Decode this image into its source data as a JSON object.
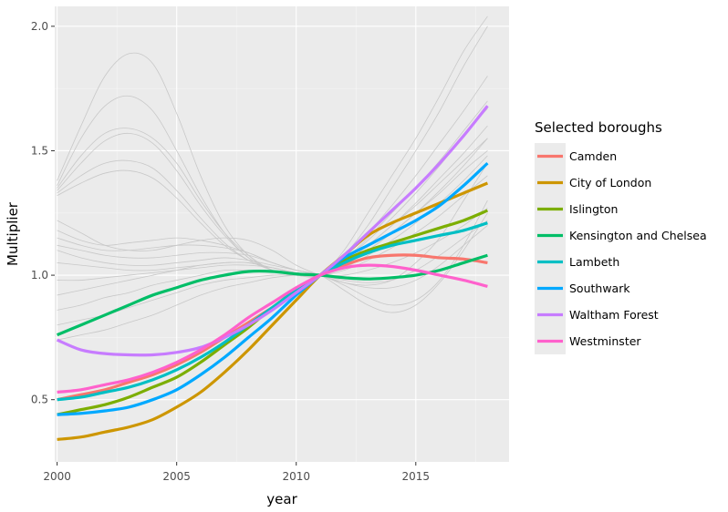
{
  "chart_data": {
    "type": "line",
    "title": "",
    "xlabel": "year",
    "ylabel": "Multiplier",
    "xlim": [
      1999.9,
      2018.9
    ],
    "ylim": [
      0.25,
      2.08
    ],
    "x_ticks": [
      2000,
      2005,
      2010,
      2015
    ],
    "y_ticks": [
      0.5,
      1.0,
      1.5,
      2.0
    ],
    "x_tick_labels": [
      "2000",
      "2005",
      "2010",
      "2015"
    ],
    "y_tick_labels": [
      "0.5",
      "1.0",
      "1.5",
      "2.0"
    ],
    "grid": true,
    "legend_title": "Selected boroughs",
    "legend_position": "right",
    "background_color": "#EBEBEB",
    "background_series_color": "#C8C8C8",
    "x": [
      2000,
      2001,
      2002,
      2003,
      2004,
      2005,
      2006,
      2007,
      2008,
      2009,
      2010,
      2011,
      2012,
      2013,
      2014,
      2015,
      2016,
      2017,
      2018
    ],
    "series": [
      {
        "name": "Camden",
        "color": "#F8766D",
        "values": [
          0.5,
          0.52,
          0.54,
          0.57,
          0.6,
          0.64,
          0.69,
          0.75,
          0.81,
          0.87,
          0.93,
          1.0,
          1.04,
          1.07,
          1.08,
          1.08,
          1.07,
          1.065,
          1.05
        ]
      },
      {
        "name": "City of London",
        "color": "#CD9600",
        "values": [
          0.34,
          0.35,
          0.37,
          0.39,
          0.42,
          0.47,
          0.53,
          0.61,
          0.7,
          0.8,
          0.9,
          1.0,
          1.08,
          1.16,
          1.21,
          1.25,
          1.29,
          1.33,
          1.37
        ]
      },
      {
        "name": "Islington",
        "color": "#7CAE00",
        "values": [
          0.44,
          0.46,
          0.48,
          0.51,
          0.55,
          0.59,
          0.65,
          0.72,
          0.79,
          0.87,
          0.94,
          1.0,
          1.06,
          1.1,
          1.13,
          1.16,
          1.19,
          1.22,
          1.26
        ]
      },
      {
        "name": "Kensington and Chelsea",
        "color": "#00BE67",
        "values": [
          0.76,
          0.8,
          0.84,
          0.88,
          0.92,
          0.95,
          0.98,
          1.0,
          1.015,
          1.015,
          1.005,
          1.0,
          0.99,
          0.985,
          0.99,
          1.0,
          1.02,
          1.05,
          1.08
        ]
      },
      {
        "name": "Lambeth",
        "color": "#00BFC4",
        "values": [
          0.5,
          0.51,
          0.53,
          0.55,
          0.58,
          0.62,
          0.67,
          0.73,
          0.8,
          0.87,
          0.94,
          1.0,
          1.05,
          1.09,
          1.12,
          1.14,
          1.16,
          1.18,
          1.21
        ]
      },
      {
        "name": "Southwark",
        "color": "#00A9FF",
        "values": [
          0.44,
          0.445,
          0.455,
          0.47,
          0.5,
          0.54,
          0.6,
          0.67,
          0.75,
          0.83,
          0.92,
          1.0,
          1.07,
          1.12,
          1.17,
          1.22,
          1.28,
          1.36,
          1.45
        ]
      },
      {
        "name": "Waltham Forest",
        "color": "#C77CFF",
        "values": [
          0.74,
          0.7,
          0.685,
          0.68,
          0.68,
          0.69,
          0.71,
          0.75,
          0.8,
          0.86,
          0.93,
          1.0,
          1.08,
          1.17,
          1.26,
          1.35,
          1.45,
          1.56,
          1.68
        ]
      },
      {
        "name": "Westminster",
        "color": "#FF61CC",
        "values": [
          0.53,
          0.54,
          0.56,
          0.58,
          0.61,
          0.65,
          0.7,
          0.76,
          0.83,
          0.89,
          0.95,
          1.0,
          1.03,
          1.04,
          1.035,
          1.02,
          1.0,
          0.98,
          0.955
        ]
      }
    ],
    "other_boroughs": [
      [
        1.38,
        1.6,
        1.8,
        1.89,
        1.85,
        1.65,
        1.4,
        1.2,
        1.08,
        1.02,
        1.0,
        1.0,
        1.1,
        1.25,
        1.4,
        1.55,
        1.72,
        1.9,
        2.04
      ],
      [
        1.36,
        1.55,
        1.68,
        1.72,
        1.66,
        1.5,
        1.32,
        1.17,
        1.07,
        1.02,
        1.0,
        1.0,
        1.08,
        1.2,
        1.35,
        1.5,
        1.66,
        1.84,
        2.0
      ],
      [
        1.35,
        1.48,
        1.57,
        1.59,
        1.55,
        1.45,
        1.3,
        1.17,
        1.08,
        1.02,
        1.0,
        1.0,
        1.07,
        1.17,
        1.28,
        1.4,
        1.53,
        1.66,
        1.8
      ],
      [
        1.34,
        1.45,
        1.54,
        1.57,
        1.53,
        1.42,
        1.28,
        1.16,
        1.07,
        1.02,
        1.0,
        1.0,
        1.06,
        1.15,
        1.25,
        1.35,
        1.46,
        1.58,
        1.7
      ],
      [
        1.33,
        1.4,
        1.45,
        1.46,
        1.43,
        1.34,
        1.23,
        1.13,
        1.06,
        1.02,
        1.0,
        1.0,
        1.05,
        1.12,
        1.2,
        1.28,
        1.37,
        1.46,
        1.55
      ],
      [
        1.32,
        1.37,
        1.41,
        1.42,
        1.39,
        1.31,
        1.21,
        1.12,
        1.06,
        1.02,
        1.0,
        1.0,
        1.04,
        1.1,
        1.17,
        1.25,
        1.33,
        1.42,
        1.5
      ],
      [
        1.22,
        1.17,
        1.12,
        1.1,
        1.1,
        1.12,
        1.14,
        1.15,
        1.14,
        1.1,
        1.04,
        1.0,
        0.97,
        0.96,
        0.98,
        1.05,
        1.15,
        1.3,
        1.45
      ],
      [
        1.18,
        1.14,
        1.12,
        1.13,
        1.14,
        1.15,
        1.14,
        1.12,
        1.09,
        1.05,
        1.02,
        1.0,
        0.96,
        0.91,
        0.88,
        0.9,
        0.98,
        1.12,
        1.3
      ],
      [
        1.15,
        1.12,
        1.1,
        1.1,
        1.11,
        1.12,
        1.12,
        1.11,
        1.09,
        1.05,
        1.02,
        1.0,
        0.94,
        0.88,
        0.85,
        0.88,
        0.97,
        1.1,
        1.25
      ],
      [
        1.12,
        1.1,
        1.08,
        1.07,
        1.07,
        1.08,
        1.09,
        1.09,
        1.08,
        1.05,
        1.02,
        1.0,
        0.97,
        0.95,
        0.95,
        0.98,
        1.04,
        1.12,
        1.2
      ],
      [
        1.1,
        1.07,
        1.05,
        1.04,
        1.04,
        1.05,
        1.06,
        1.07,
        1.06,
        1.04,
        1.02,
        1.0,
        0.98,
        0.97,
        0.98,
        1.02,
        1.08,
        1.15,
        1.22
      ],
      [
        1.05,
        1.04,
        1.03,
        1.02,
        1.02,
        1.03,
        1.04,
        1.05,
        1.05,
        1.03,
        1.01,
        1.0,
        1.0,
        1.02,
        1.05,
        1.09,
        1.14,
        1.2,
        1.27
      ],
      [
        0.98,
        0.98,
        0.99,
        1.0,
        1.01,
        1.02,
        1.03,
        1.04,
        1.04,
        1.03,
        1.01,
        1.0,
        1.02,
        1.06,
        1.11,
        1.17,
        1.24,
        1.32,
        1.4
      ],
      [
        0.92,
        0.94,
        0.96,
        0.98,
        1.0,
        1.02,
        1.04,
        1.05,
        1.05,
        1.03,
        1.01,
        1.0,
        1.03,
        1.08,
        1.14,
        1.21,
        1.29,
        1.38,
        1.48
      ],
      [
        0.86,
        0.88,
        0.91,
        0.93,
        0.96,
        0.98,
        1.0,
        1.02,
        1.02,
        1.02,
        1.01,
        1.0,
        1.04,
        1.1,
        1.17,
        1.25,
        1.34,
        1.44,
        1.55
      ],
      [
        0.8,
        0.82,
        0.84,
        0.87,
        0.9,
        0.93,
        0.96,
        0.98,
        0.99,
        1.0,
        1.0,
        1.0,
        1.05,
        1.12,
        1.2,
        1.29,
        1.39,
        1.49,
        1.6
      ],
      [
        0.74,
        0.76,
        0.78,
        0.81,
        0.84,
        0.88,
        0.92,
        0.95,
        0.97,
        0.99,
        1.0,
        1.0,
        1.06,
        1.14,
        1.23,
        1.33,
        1.44,
        1.56,
        1.67
      ]
    ]
  }
}
